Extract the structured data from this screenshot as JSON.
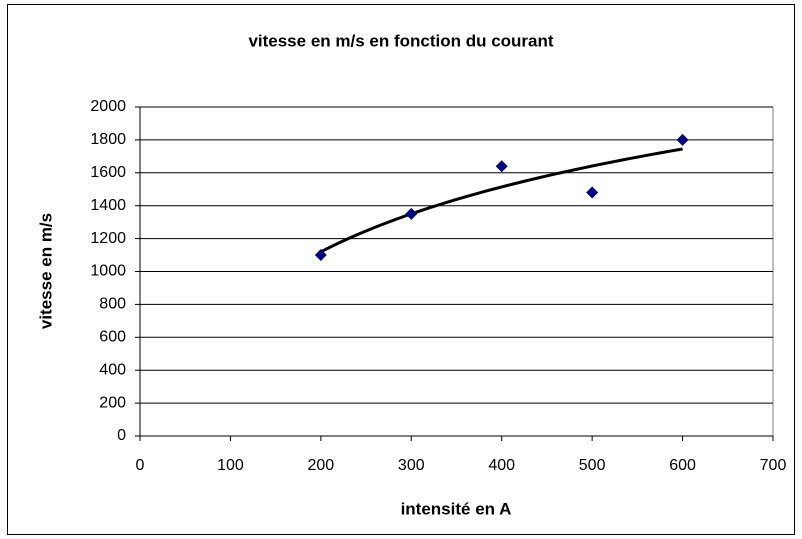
{
  "chart_data": {
    "type": "scatter",
    "title": "vitesse en m/s en fonction du courant",
    "xlabel": "intensité en A",
    "ylabel": "vitesse en m/s",
    "x": [
      200,
      300,
      400,
      500,
      600
    ],
    "values": [
      1100,
      1350,
      1640,
      1480,
      1800
    ],
    "color": "#000080",
    "trendline": "logarithmic",
    "trendline_color": "#000000",
    "xlim": [
      0,
      700
    ],
    "xticks": [
      0,
      100,
      200,
      300,
      400,
      500,
      600,
      700
    ],
    "ylim": [
      0,
      2000
    ],
    "yticks": [
      0,
      200,
      400,
      600,
      800,
      1000,
      1200,
      1400,
      1600,
      1800,
      2000
    ],
    "grid": true
  }
}
